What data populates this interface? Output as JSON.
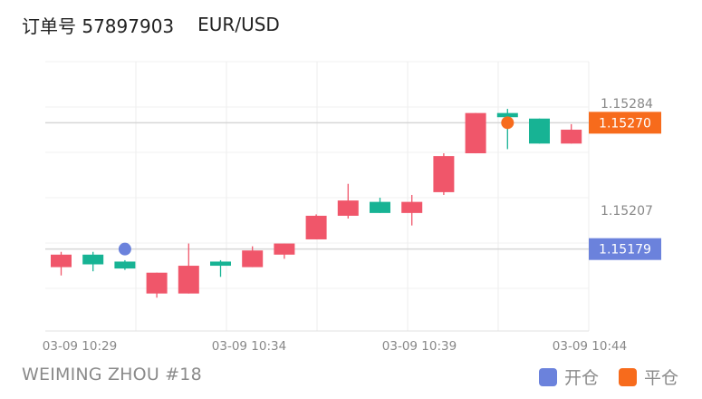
{
  "header": {
    "order_label": "订单号 57897903",
    "symbol": "EUR/USD"
  },
  "footer": {
    "account_label": "WEIMING ZHOU #18"
  },
  "legend": [
    {
      "label": "开仓",
      "color": "#6b82dc"
    },
    {
      "label": "平仓",
      "color": "#f76b1c"
    }
  ],
  "colors": {
    "up": "#f0566a",
    "down": "#17b394",
    "open_marker": "#6b82dc",
    "close_marker": "#f76b1c"
  },
  "chart_data": {
    "type": "candlestick",
    "ylim": [
      1.1512,
      1.15314
    ],
    "x_ticks": [
      "03-09 10:29",
      "03-09 10:34",
      "03-09 10:39",
      "03-09 10:44"
    ],
    "x_tick_index": [
      0,
      5,
      10,
      15
    ],
    "y_ticks": [
      "1.15284",
      "1.15207"
    ],
    "y_tick_values": [
      1.15284,
      1.15207
    ],
    "candles": [
      {
        "time": "10:29",
        "open": 1.15166,
        "close": 1.15175,
        "high": 1.15177,
        "low": 1.1516
      },
      {
        "time": "10:30",
        "open": 1.15175,
        "close": 1.15168,
        "high": 1.15177,
        "low": 1.15163
      },
      {
        "time": "10:31",
        "open": 1.1517,
        "close": 1.15165,
        "high": 1.15171,
        "low": 1.15164
      },
      {
        "time": "10:32",
        "open": 1.15147,
        "close": 1.15162,
        "high": 1.15162,
        "low": 1.15144
      },
      {
        "time": "10:33",
        "open": 1.15147,
        "close": 1.15167,
        "high": 1.15183,
        "low": 1.15147
      },
      {
        "time": "10:34",
        "open": 1.1517,
        "close": 1.15167,
        "high": 1.15171,
        "low": 1.15159
      },
      {
        "time": "10:35",
        "open": 1.15166,
        "close": 1.15178,
        "high": 1.15181,
        "low": 1.15166
      },
      {
        "time": "10:36",
        "open": 1.15175,
        "close": 1.15183,
        "high": 1.15183,
        "low": 1.15172
      },
      {
        "time": "10:37",
        "open": 1.15186,
        "close": 1.15203,
        "high": 1.15204,
        "low": 1.15186
      },
      {
        "time": "10:38",
        "open": 1.15203,
        "close": 1.15214,
        "high": 1.15226,
        "low": 1.15201
      },
      {
        "time": "10:39",
        "open": 1.15213,
        "close": 1.15205,
        "high": 1.15216,
        "low": 1.15205
      },
      {
        "time": "10:40",
        "open": 1.15205,
        "close": 1.15213,
        "high": 1.15218,
        "low": 1.15196
      },
      {
        "time": "10:41",
        "open": 1.1522,
        "close": 1.15246,
        "high": 1.15248,
        "low": 1.15218
      },
      {
        "time": "10:42",
        "open": 1.15248,
        "close": 1.15277,
        "high": 1.15277,
        "low": 1.15248
      },
      {
        "time": "10:43",
        "open": 1.15277,
        "close": 1.15274,
        "high": 1.1528,
        "low": 1.15251
      },
      {
        "time": "10:44",
        "open": 1.15273,
        "close": 1.15255,
        "high": 1.15273,
        "low": 1.15255
      },
      {
        "time": "10:45",
        "open": 1.15255,
        "close": 1.15265,
        "high": 1.15269,
        "low": 1.15255
      }
    ],
    "markers": [
      {
        "type": "open",
        "index": 2,
        "price": 1.15179,
        "label": "1.15179"
      },
      {
        "type": "close",
        "index": 14,
        "price": 1.1527,
        "label": "1.15270"
      }
    ]
  }
}
